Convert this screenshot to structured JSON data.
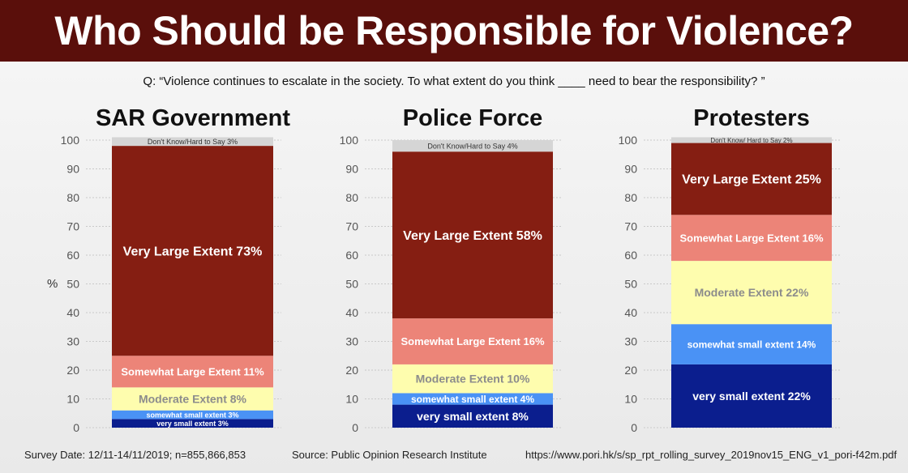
{
  "banner": {
    "title": "Who Should be Responsible for Violence?"
  },
  "question": "Q: “Violence continues to escalate in the society. To what extent do you think ____ need to bear the responsibility? ”",
  "ylabel": "%",
  "colors": {
    "very_large": "#851e12",
    "somewhat_large": "#ec8478",
    "moderate": "#fefdae",
    "somewhat_small": "#4a92f5",
    "very_small": "#0b1e8e",
    "dont_know": "#d5d5d5"
  },
  "chart_data": [
    {
      "type": "bar",
      "stacked": true,
      "title": "SAR Government",
      "ylim": [
        0,
        100
      ],
      "yticks": [
        0,
        10,
        20,
        30,
        40,
        50,
        60,
        70,
        80,
        90,
        100
      ],
      "segments": [
        {
          "key": "very_small",
          "value": 3,
          "label": "very small extent  3%"
        },
        {
          "key": "somewhat_small",
          "value": 3,
          "label": "somewhat small extent  3%"
        },
        {
          "key": "moderate",
          "value": 8,
          "label": "Moderate Extent 8%"
        },
        {
          "key": "somewhat_large",
          "value": 11,
          "label": "Somewhat Large Extent 11%"
        },
        {
          "key": "very_large",
          "value": 73,
          "label": "Very Large Extent 73%"
        },
        {
          "key": "dont_know",
          "value": 3,
          "label": "Don't Know/Hard to Say  3%"
        }
      ]
    },
    {
      "type": "bar",
      "stacked": true,
      "title": "Police Force",
      "ylim": [
        0,
        100
      ],
      "yticks": [
        0,
        10,
        20,
        30,
        40,
        50,
        60,
        70,
        80,
        90,
        100
      ],
      "segments": [
        {
          "key": "very_small",
          "value": 8,
          "label": "very small extent  8%"
        },
        {
          "key": "somewhat_small",
          "value": 4,
          "label": "somewhat small extent  4%"
        },
        {
          "key": "moderate",
          "value": 10,
          "label": "Moderate Extent 10%"
        },
        {
          "key": "somewhat_large",
          "value": 16,
          "label": "Somewhat Large Extent 16%"
        },
        {
          "key": "very_large",
          "value": 58,
          "label": "Very Large Extent 58%"
        },
        {
          "key": "dont_know",
          "value": 4,
          "label": "Don't Know/Hard to Say 4%"
        }
      ]
    },
    {
      "type": "bar",
      "stacked": true,
      "title": "Protesters",
      "ylim": [
        0,
        100
      ],
      "yticks": [
        0,
        10,
        20,
        30,
        40,
        50,
        60,
        70,
        80,
        90,
        100
      ],
      "segments": [
        {
          "key": "very_small",
          "value": 22,
          "label": "very small extent  22%"
        },
        {
          "key": "somewhat_small",
          "value": 14,
          "label": "somewhat small extent  14%"
        },
        {
          "key": "moderate",
          "value": 22,
          "label": "Moderate Extent 22%"
        },
        {
          "key": "somewhat_large",
          "value": 16,
          "label": "Somewhat Large Extent 16%"
        },
        {
          "key": "very_large",
          "value": 25,
          "label": "Very Large Extent 25%"
        },
        {
          "key": "dont_know",
          "value": 2,
          "label": "Don't Know/ Hard to Say 2%"
        }
      ]
    }
  ],
  "footer": {
    "survey_date": "Survey Date: 12/11-14/11/2019; n=855,866,853",
    "source": "Source: Public Opinion Research Institute",
    "url": "https://www.pori.hk/s/sp_rpt_rolling_survey_2019nov15_ENG_v1_pori-f42m.pdf"
  }
}
